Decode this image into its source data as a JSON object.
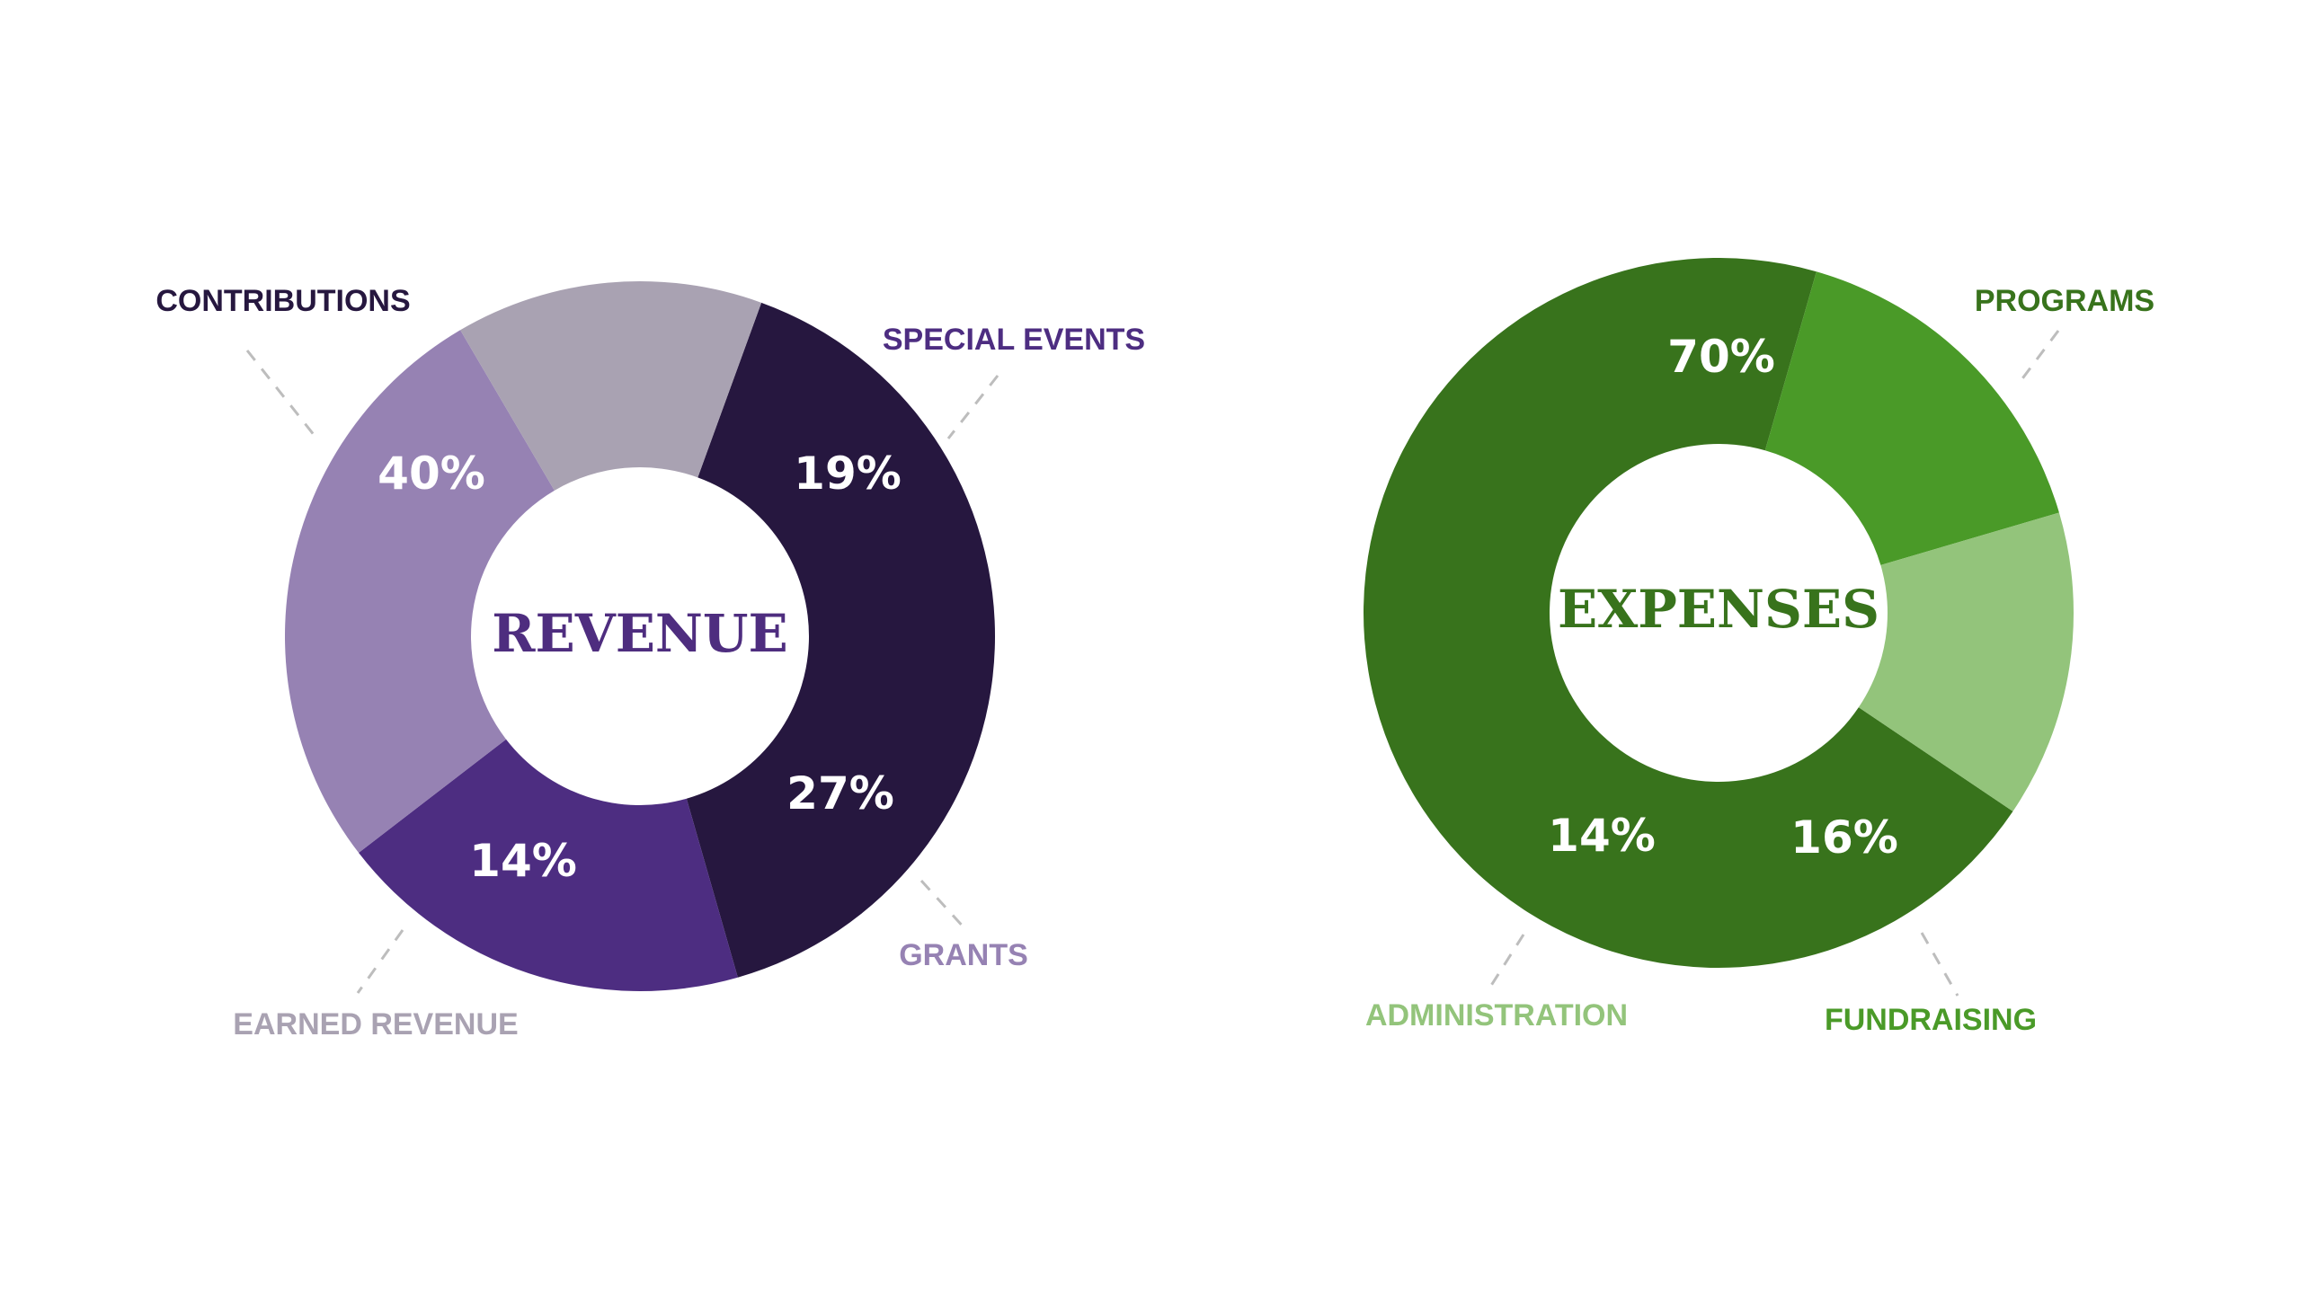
{
  "chart_data": [
    {
      "type": "pie",
      "title": "REVENUE",
      "title_color": "#4e2d7f",
      "categories": [
        "CONTRIBUTIONS",
        "SPECIAL EVENTS",
        "GRANTS",
        "EARNED REVENUE"
      ],
      "values": [
        40,
        19,
        27,
        14
      ],
      "labels": [
        "40%",
        "19%",
        "27%",
        "14%"
      ],
      "colors": [
        "#26173f",
        "#4d2d81",
        "#9682b3",
        "#a9a2b2"
      ],
      "legend_placement": "callouts around ring"
    },
    {
      "type": "pie",
      "title": "EXPENSES",
      "title_color": "#38731c",
      "categories": [
        "PROGRAMS",
        "FUNDRAISING",
        "ADMINISTRATION"
      ],
      "values": [
        70,
        16,
        14
      ],
      "labels": [
        "70%",
        "16%",
        "14%"
      ],
      "colors": [
        "#38731c",
        "#4a9a28",
        "#93c47b"
      ],
      "legend_placement": "callouts around ring"
    }
  ]
}
